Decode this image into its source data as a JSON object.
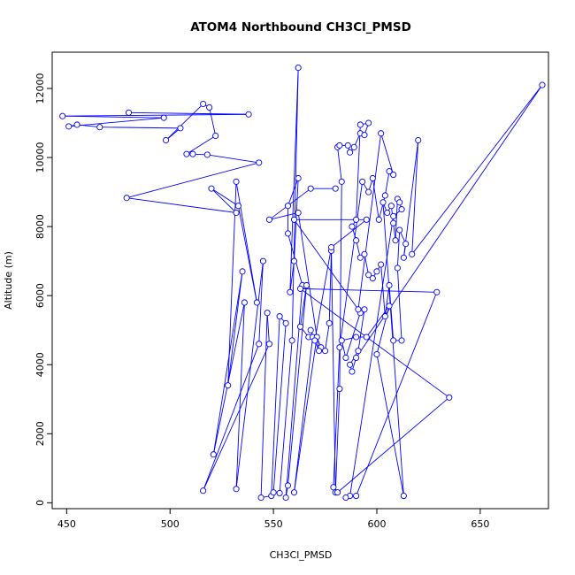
{
  "chart_data": {
    "type": "scatter",
    "title": "ATOM4 Northbound CH3Cl_PMSD",
    "xlabel": "CH3Cl_PMSD",
    "ylabel": "Altitude (m)",
    "xlim": [
      443,
      683
    ],
    "ylim": [
      -170,
      13050
    ],
    "xticks": [
      450,
      500,
      550,
      600,
      650
    ],
    "yticks": [
      0,
      2000,
      4000,
      6000,
      8000,
      10000,
      12000
    ],
    "grid": false,
    "series_color": "#0000ff",
    "series": [
      {
        "marker": "open-circle",
        "connected": true,
        "points": [
          [
            480,
            11300
          ],
          [
            538,
            11250
          ],
          [
            448,
            11200
          ],
          [
            497,
            11150
          ],
          [
            451,
            10900
          ],
          [
            455,
            10950
          ],
          [
            466,
            10880
          ],
          [
            505,
            10850
          ],
          [
            498,
            10500
          ],
          [
            516,
            11550
          ],
          [
            519,
            11450
          ],
          [
            522,
            10630
          ],
          [
            508,
            10100
          ],
          [
            511,
            10100
          ],
          [
            518,
            10080
          ],
          [
            543,
            9850
          ],
          [
            479,
            8830
          ],
          [
            532,
            8400
          ],
          [
            520,
            9100
          ],
          [
            533,
            8600
          ],
          [
            542,
            5800
          ],
          [
            532,
            9300
          ],
          [
            528,
            3400
          ],
          [
            535,
            6700
          ],
          [
            521,
            1400
          ],
          [
            536,
            5800
          ],
          [
            532,
            400
          ],
          [
            545,
            7000
          ],
          [
            543,
            4600
          ],
          [
            516,
            350
          ],
          [
            548,
            4600
          ],
          [
            547,
            5500
          ],
          [
            544,
            150
          ],
          [
            549,
            200
          ],
          [
            553,
            5400
          ],
          [
            556,
            5200
          ],
          [
            550,
            300
          ],
          [
            553,
            280
          ],
          [
            559,
            4700
          ],
          [
            562,
            12600
          ],
          [
            558,
            6100
          ],
          [
            560,
            7000
          ],
          [
            562,
            9400
          ],
          [
            557,
            8600
          ],
          [
            557,
            7800
          ],
          [
            564,
            6300
          ],
          [
            556,
            150
          ],
          [
            557,
            500
          ],
          [
            566,
            6300
          ],
          [
            563,
            5100
          ],
          [
            567,
            4800
          ],
          [
            569,
            4800
          ],
          [
            560,
            300
          ],
          [
            571,
            4800
          ],
          [
            573,
            4500
          ],
          [
            575,
            4400
          ],
          [
            577,
            5200
          ],
          [
            578,
            7300
          ],
          [
            580,
            300
          ],
          [
            582,
            3300
          ],
          [
            583,
            9300
          ],
          [
            581,
            10300
          ],
          [
            582,
            10350
          ],
          [
            586,
            10350
          ],
          [
            587,
            10150
          ],
          [
            589,
            10300
          ],
          [
            592,
            10700
          ],
          [
            594,
            10650
          ],
          [
            596,
            11000
          ],
          [
            592,
            10950
          ],
          [
            590,
            8200
          ],
          [
            588,
            8000
          ],
          [
            590,
            7600
          ],
          [
            592,
            7100
          ],
          [
            594,
            7200
          ],
          [
            596,
            6600
          ],
          [
            598,
            6500
          ],
          [
            600,
            6700
          ],
          [
            602,
            6900
          ],
          [
            604,
            5400
          ],
          [
            606,
            6300
          ],
          [
            608,
            4700
          ],
          [
            612,
            4700
          ],
          [
            610,
            6800
          ],
          [
            611,
            7900
          ],
          [
            614,
            7500
          ],
          [
            613,
            7100
          ],
          [
            620,
            10500
          ],
          [
            617,
            7200
          ],
          [
            680,
            12100
          ],
          [
            590,
            4200
          ],
          [
            588,
            3800
          ],
          [
            587,
            4000
          ],
          [
            591,
            4400
          ],
          [
            594,
            5600
          ],
          [
            592,
            5500
          ],
          [
            585,
            4200
          ],
          [
            583,
            4700
          ],
          [
            590,
            4800
          ],
          [
            595,
            4800
          ],
          [
            606,
            5700
          ],
          [
            600,
            4300
          ],
          [
            613,
            200
          ],
          [
            603,
            8700
          ],
          [
            605,
            8400
          ],
          [
            607,
            8600
          ],
          [
            608,
            8100
          ],
          [
            609,
            7600
          ],
          [
            610,
            8800
          ],
          [
            611,
            8700
          ],
          [
            612,
            8500
          ],
          [
            608,
            8300
          ],
          [
            587,
            200
          ],
          [
            585,
            150
          ],
          [
            590,
            200
          ],
          [
            629,
            6100
          ],
          [
            563,
            6200
          ],
          [
            635,
            3050
          ],
          [
            581,
            300
          ],
          [
            579,
            450
          ],
          [
            582,
            4500
          ],
          [
            593,
            9300
          ],
          [
            596,
            9000
          ],
          [
            598,
            9400
          ],
          [
            601,
            8200
          ],
          [
            604,
            8900
          ],
          [
            606,
            9600
          ],
          [
            608,
            9500
          ],
          [
            602,
            10700
          ],
          [
            591,
            5600
          ],
          [
            560,
            8200
          ],
          [
            595,
            8200
          ],
          [
            578,
            7400
          ],
          [
            570,
            4700
          ],
          [
            568,
            5000
          ],
          [
            572,
            4400
          ],
          [
            562,
            8400
          ],
          [
            548,
            8200
          ],
          [
            568,
            9100
          ],
          [
            580,
            9100
          ]
        ]
      }
    ]
  }
}
